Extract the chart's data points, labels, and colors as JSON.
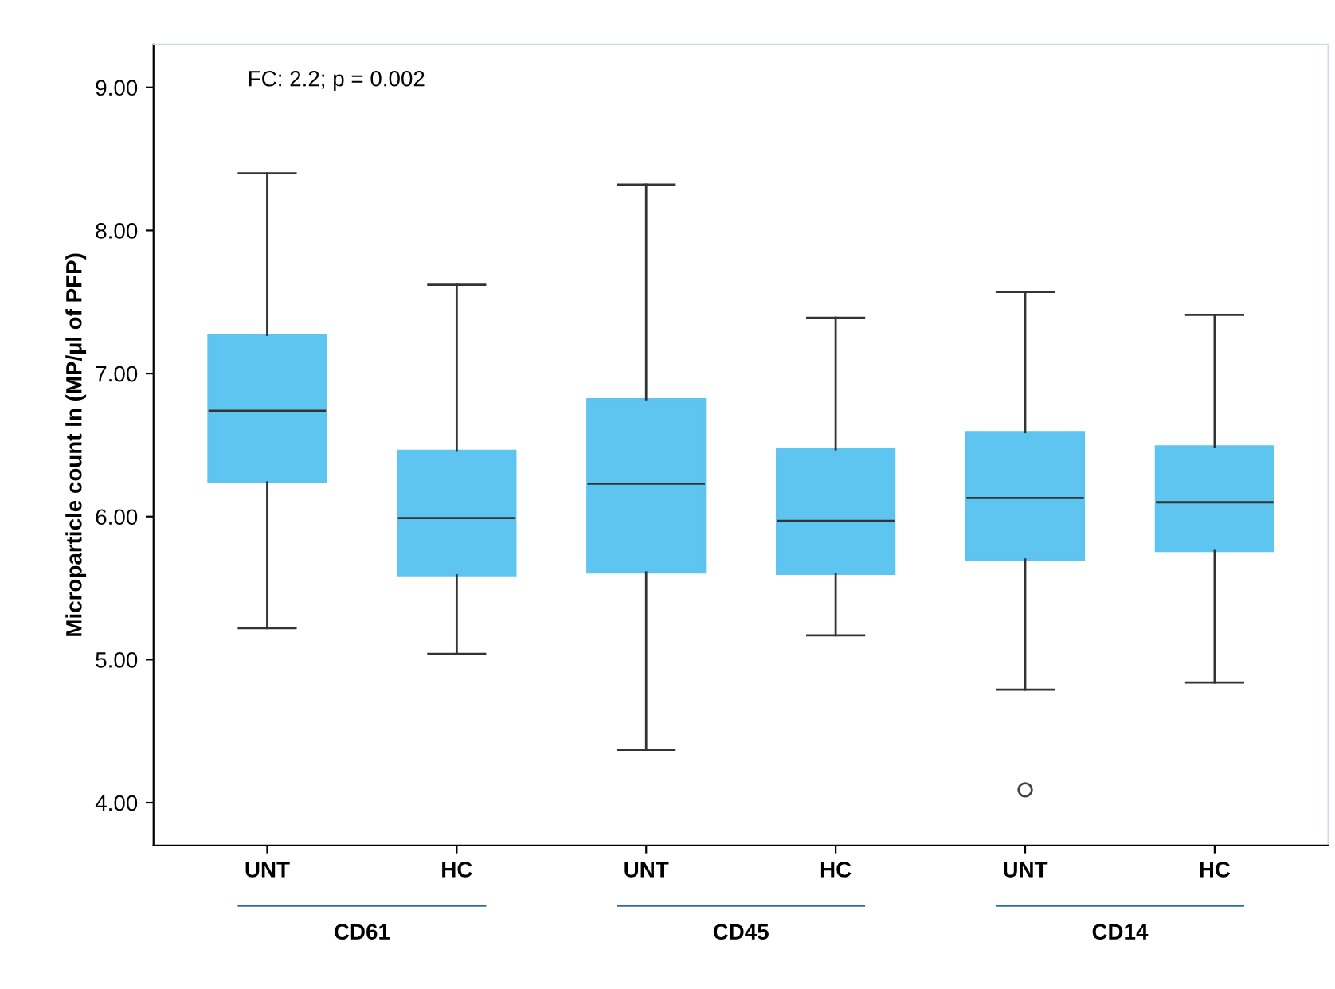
{
  "chart_data": {
    "type": "box",
    "ylabel": "Microparticle count ln (MP/µl of PFP)",
    "categories": [
      "UNT",
      "HC",
      "UNT",
      "HC",
      "UNT",
      "HC"
    ],
    "annotations": [
      "FC: 2.2; p = 0.002",
      "CD61",
      "CD45",
      "CD14"
    ],
    "color": "#5ec4f0",
    "boxes": [
      {
        "low": 5.22,
        "q1": 6.24,
        "median": 6.74,
        "q3": 7.27,
        "high": 8.4
      },
      {
        "low": 5.04,
        "q1": 5.59,
        "median": 5.99,
        "q3": 6.46,
        "high": 7.62
      },
      {
        "low": 4.37,
        "q1": 5.61,
        "median": 6.23,
        "q3": 6.82,
        "high": 8.32
      },
      {
        "low": 5.17,
        "q1": 5.6,
        "median": 5.97,
        "q3": 6.47,
        "high": 7.39
      },
      {
        "low": 4.79,
        "q1": 5.7,
        "median": 6.13,
        "q3": 6.59,
        "high": 7.57,
        "outliers": [
          4.09
        ]
      },
      {
        "low": 4.84,
        "q1": 5.76,
        "median": 6.1,
        "q3": 6.49,
        "high": 7.41
      }
    ],
    "ylim": [
      3.7,
      9.3
    ],
    "yticks": [
      {
        "value": 4,
        "label": "4.00"
      },
      {
        "value": 5,
        "label": "5.00"
      },
      {
        "value": 6,
        "label": "6.00"
      },
      {
        "value": 7,
        "label": "7.00"
      },
      {
        "value": 8,
        "label": "8.00"
      },
      {
        "value": 9,
        "label": "9.00"
      }
    ],
    "grid": false
  }
}
